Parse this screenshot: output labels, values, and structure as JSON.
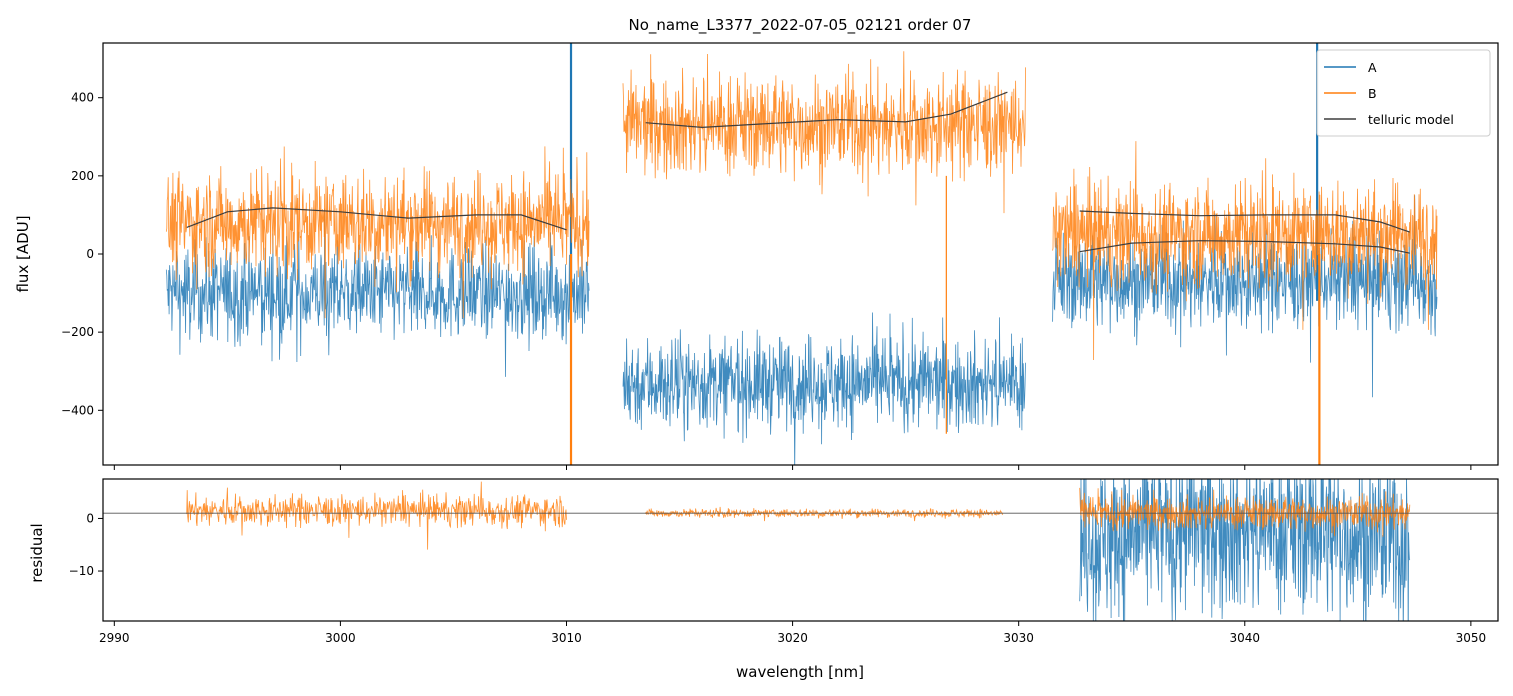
{
  "chart_data": [
    {
      "type": "line",
      "panel": "flux",
      "title": "No_name_L3377_2022-07-05_02121  order 07",
      "xlabel": "",
      "ylabel": "flux [ADU]",
      "xlim": [
        2989.5,
        3051.2
      ],
      "ylim": [
        -540,
        540
      ],
      "yticks": [
        -400,
        -200,
        0,
        200,
        400
      ],
      "ytick_labels": [
        "−400",
        "−200",
        "0",
        "200",
        "400"
      ],
      "xticks": [
        2990,
        3000,
        3010,
        3020,
        3030,
        3040,
        3050
      ],
      "grid": false,
      "legend": {
        "location": "top-right",
        "entries": [
          {
            "label": "A",
            "color": "#1f77b4"
          },
          {
            "label": "B",
            "color": "#ff7f0e"
          },
          {
            "label": "telluric model",
            "color": "#3d3d3d"
          }
        ]
      },
      "series": [
        {
          "name": "A",
          "color": "#1f77b4",
          "noise": 60,
          "segments": [
            {
              "x": [
                2992.3,
                3011.0
              ],
              "level": -100
            },
            {
              "x": [
                3012.5,
                3030.3
              ],
              "level": -330
            },
            {
              "x": [
                3031.5,
                3048.5
              ],
              "level": -70
            }
          ]
        },
        {
          "name": "B",
          "color": "#ff7f0e",
          "noise": 65,
          "segments": [
            {
              "x": [
                2992.3,
                3011.0
              ],
              "level": 80
            },
            {
              "x": [
                3012.5,
                3030.3
              ],
              "level": 330
            },
            {
              "x": [
                3031.5,
                3048.5
              ],
              "level": 50
            }
          ]
        },
        {
          "name": "telluric model",
          "color": "#3d3d3d",
          "curves": [
            {
              "x": [
                2993.2,
                2995.0,
                2997.0,
                3000.0,
                3003.0,
                3006.0,
                3008.0,
                3010.0
              ],
              "y": [
                68,
                108,
                118,
                108,
                92,
                100,
                100,
                62
              ]
            },
            {
              "x": [
                3013.5,
                3016.0,
                3019.0,
                3022.0,
                3025.0,
                3027.0,
                3029.5
              ],
              "y": [
                336,
                324,
                334,
                344,
                338,
                358,
                414
              ]
            },
            {
              "x": [
                3032.7,
                3035.0,
                3038.0,
                3041.0,
                3044.0,
                3046.0,
                3047.3
              ],
              "y": [
                110,
                104,
                98,
                100,
                100,
                82,
                56
              ]
            },
            {
              "x": [
                3032.7,
                3035.0,
                3038.0,
                3041.0,
                3044.0,
                3046.0,
                3047.3
              ],
              "y": [
                6,
                28,
                34,
                32,
                26,
                18,
                2
              ]
            }
          ]
        }
      ]
    },
    {
      "type": "line",
      "panel": "residual",
      "xlabel": "wavelength [nm]",
      "ylabel": "residual",
      "xlim": [
        2989.5,
        3051.2
      ],
      "ylim": [
        -19.5,
        7.5
      ],
      "yticks": [
        -10,
        0
      ],
      "ytick_labels": [
        "−10",
        "0"
      ],
      "xticks": [
        2990,
        3000,
        3010,
        3020,
        3030,
        3040,
        3050
      ],
      "xtick_labels": [
        "2990",
        "3000",
        "3010",
        "3020",
        "3030",
        "3040",
        "3050"
      ],
      "reference_line": 1,
      "series": [
        {
          "name": "A",
          "color": "#1f77b4",
          "segments": [
            {
              "x": [
                3032.7,
                3047.3
              ],
              "level": -2,
              "noise": 8
            }
          ]
        },
        {
          "name": "B",
          "color": "#ff7f0e",
          "segments": [
            {
              "x": [
                2993.2,
                3010.0
              ],
              "level": 1.5,
              "noise": 1.5
            },
            {
              "x": [
                3013.5,
                3029.3
              ],
              "level": 1,
              "noise": 0.4
            },
            {
              "x": [
                3032.7,
                3047.3
              ],
              "level": 1,
              "noise": 1.6
            }
          ]
        }
      ]
    }
  ]
}
